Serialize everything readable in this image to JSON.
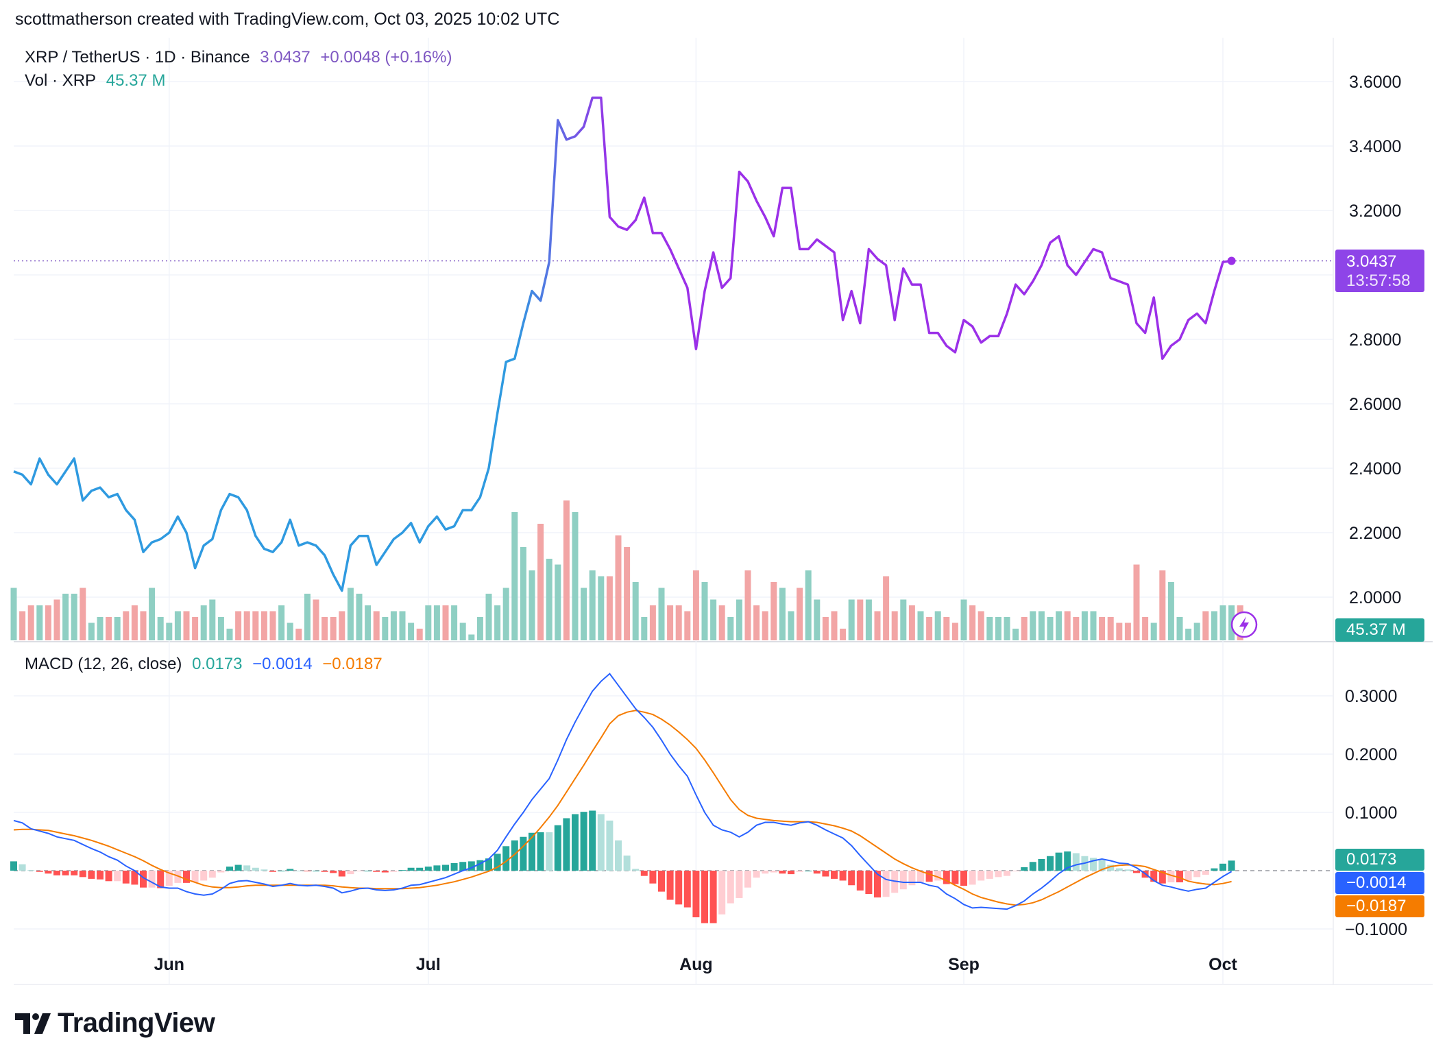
{
  "header": {
    "credit": "scottmatherson created with TradingView.com, Oct 03, 2025 10:02 UTC"
  },
  "legend": {
    "symbol": "XRP / TetherUS · 1D · Binance",
    "price": "3.0437",
    "change": "+0.0048 (+0.16%)",
    "vol_label": "Vol · XRP",
    "vol_value": "45.37 M",
    "macd_label": "MACD (12, 26, close)",
    "macd_hist": "0.0173",
    "macd_line": "−0.0014",
    "macd_signal": "−0.0187"
  },
  "badges": {
    "price": "3.0437",
    "countdown": "13:57:58",
    "volume": "45.37 M",
    "hist": "0.0173",
    "macd": "−0.0014",
    "signal": "−0.0187"
  },
  "colors": {
    "line_blue": "#2f9ae0",
    "line_purple": "#9b30e8",
    "vol_up": "#8fcfc3",
    "vol_down": "#f2a5a5",
    "macd_line": "#2962ff",
    "signal_line": "#f57c00",
    "hist_up_strong": "#26a69a",
    "hist_up_weak": "#b2dfdb",
    "hist_down_strong": "#ff5252",
    "hist_down_weak": "#ffcdd2",
    "accent": "#7e57c2"
  },
  "logo": {
    "text": "TradingView"
  },
  "chart_data": [
    {
      "type": "line",
      "title": "XRP / TetherUS · 1D · Binance",
      "x_labels": [
        "Jun",
        "Jul",
        "Aug",
        "Sep",
        "Oct"
      ],
      "x_label_dates": [
        "2025-06-01",
        "2025-07-01",
        "2025-08-01",
        "2025-09-01",
        "2025-10-01"
      ],
      "x_start": "2025-05-14",
      "ylim": [
        1.9,
        3.62
      ],
      "y_ticks": [
        2.0,
        2.2,
        2.4,
        2.6,
        2.8,
        3.0,
        3.2,
        3.4,
        3.6
      ],
      "last_price": 3.0437,
      "series": [
        {
          "name": "XRP / TetherUS",
          "values": [
            2.39,
            2.38,
            2.35,
            2.43,
            2.38,
            2.35,
            2.39,
            2.43,
            2.3,
            2.33,
            2.34,
            2.31,
            2.32,
            2.27,
            2.24,
            2.14,
            2.17,
            2.18,
            2.2,
            2.25,
            2.2,
            2.09,
            2.16,
            2.18,
            2.27,
            2.32,
            2.31,
            2.27,
            2.19,
            2.15,
            2.14,
            2.17,
            2.24,
            2.16,
            2.17,
            2.16,
            2.13,
            2.07,
            2.02,
            2.16,
            2.19,
            2.19,
            2.1,
            2.14,
            2.18,
            2.2,
            2.23,
            2.17,
            2.22,
            2.25,
            2.21,
            2.22,
            2.27,
            2.27,
            2.31,
            2.4,
            2.57,
            2.73,
            2.74,
            2.85,
            2.95,
            2.92,
            3.04,
            3.48,
            3.42,
            3.43,
            3.46,
            3.55,
            3.55,
            3.18,
            3.15,
            3.14,
            3.17,
            3.24,
            3.13,
            3.13,
            3.08,
            3.02,
            2.96,
            2.77,
            2.95,
            3.07,
            2.96,
            2.99,
            3.32,
            3.29,
            3.23,
            3.18,
            3.12,
            3.27,
            3.27,
            3.08,
            3.08,
            3.11,
            3.09,
            3.07,
            2.86,
            2.95,
            2.85,
            3.08,
            3.05,
            3.03,
            2.86,
            3.02,
            2.97,
            2.97,
            2.82,
            2.82,
            2.78,
            2.76,
            2.86,
            2.84,
            2.79,
            2.81,
            2.81,
            2.88,
            2.97,
            2.94,
            2.98,
            3.03,
            3.1,
            3.12,
            3.03,
            3.0,
            3.04,
            3.08,
            3.07,
            2.99,
            2.98,
            2.97,
            2.85,
            2.82,
            2.93,
            2.74,
            2.78,
            2.8,
            2.86,
            2.88,
            2.85,
            2.95,
            3.04,
            3.0437
          ]
        },
        {
          "name": "Vol · XRP",
          "values": [
            0.9,
            0.5,
            0.6,
            0.6,
            0.6,
            0.7,
            0.8,
            0.8,
            0.9,
            0.3,
            0.4,
            0.4,
            0.4,
            0.5,
            0.6,
            0.5,
            0.9,
            0.4,
            0.3,
            0.5,
            0.5,
            0.4,
            0.6,
            0.7,
            0.4,
            0.2,
            0.5,
            0.5,
            0.5,
            0.5,
            0.5,
            0.6,
            0.3,
            0.2,
            0.8,
            0.7,
            0.4,
            0.4,
            0.5,
            0.9,
            0.8,
            0.6,
            0.5,
            0.4,
            0.5,
            0.5,
            0.3,
            0.2,
            0.6,
            0.6,
            0.6,
            0.6,
            0.3,
            0.1,
            0.4,
            0.8,
            0.6,
            0.9,
            2.2,
            1.6,
            1.2,
            2.0,
            1.4,
            1.3,
            2.4,
            2.2,
            0.9,
            1.2,
            1.1,
            1.1,
            1.8,
            1.6,
            1.0,
            0.4,
            0.6,
            0.9,
            0.6,
            0.6,
            0.5,
            1.2,
            1.0,
            0.7,
            0.6,
            0.4,
            0.7,
            1.2,
            0.6,
            0.5,
            1.0,
            0.9,
            0.5,
            0.9,
            1.2,
            0.7,
            0.4,
            0.5,
            0.2,
            0.7,
            0.7,
            0.7,
            0.5,
            1.1,
            0.5,
            0.7,
            0.6,
            0.5,
            0.4,
            0.5,
            0.4,
            0.3,
            0.7,
            0.6,
            0.5,
            0.4,
            0.4,
            0.4,
            0.2,
            0.4,
            0.5,
            0.5,
            0.4,
            0.5,
            0.5,
            0.4,
            0.5,
            0.5,
            0.4,
            0.4,
            0.3,
            0.3,
            1.3,
            0.4,
            0.3,
            1.2,
            1.0,
            0.4,
            0.2,
            0.3,
            0.5,
            0.5,
            0.6,
            0.6,
            0.6
          ]
        }
      ]
    },
    {
      "type": "line",
      "title": "MACD (12, 26, close)",
      "ylim": [
        -0.13,
        0.36
      ],
      "y_ticks": [
        -0.1,
        0.1,
        0.2,
        0.3
      ],
      "series": [
        {
          "name": "MACD",
          "values": [
            0.086,
            0.082,
            0.072,
            0.068,
            0.064,
            0.058,
            0.055,
            0.052,
            0.045,
            0.038,
            0.032,
            0.024,
            0.018,
            0.008,
            0.0,
            -0.012,
            -0.02,
            -0.028,
            -0.03,
            -0.03,
            -0.036,
            -0.04,
            -0.042,
            -0.04,
            -0.032,
            -0.022,
            -0.018,
            -0.017,
            -0.02,
            -0.023,
            -0.027,
            -0.025,
            -0.022,
            -0.025,
            -0.026,
            -0.025,
            -0.027,
            -0.03,
            -0.038,
            -0.035,
            -0.031,
            -0.03,
            -0.033,
            -0.034,
            -0.033,
            -0.03,
            -0.025,
            -0.024,
            -0.02,
            -0.016,
            -0.012,
            -0.006,
            0.0,
            0.005,
            0.012,
            0.02,
            0.035,
            0.058,
            0.08,
            0.1,
            0.122,
            0.14,
            0.158,
            0.19,
            0.225,
            0.255,
            0.282,
            0.308,
            0.325,
            0.338,
            0.318,
            0.298,
            0.278,
            0.263,
            0.246,
            0.224,
            0.2,
            0.18,
            0.162,
            0.13,
            0.1,
            0.078,
            0.07,
            0.066,
            0.058,
            0.066,
            0.078,
            0.083,
            0.083,
            0.08,
            0.078,
            0.082,
            0.084,
            0.078,
            0.07,
            0.063,
            0.056,
            0.043,
            0.026,
            0.01,
            -0.006,
            -0.015,
            -0.018,
            -0.02,
            -0.02,
            -0.02,
            -0.025,
            -0.028,
            -0.04,
            -0.048,
            -0.058,
            -0.064,
            -0.063,
            -0.064,
            -0.065,
            -0.066,
            -0.06,
            -0.052,
            -0.04,
            -0.03,
            -0.018,
            -0.005,
            0.005,
            0.01,
            0.013,
            0.017,
            0.02,
            0.017,
            0.013,
            0.012,
            0.005,
            -0.005,
            -0.017,
            -0.025,
            -0.028,
            -0.032,
            -0.035,
            -0.032,
            -0.03,
            -0.02,
            -0.01,
            -0.0014
          ]
        },
        {
          "name": "Signal",
          "values": [
            0.07,
            0.071,
            0.071,
            0.07,
            0.069,
            0.066,
            0.063,
            0.06,
            0.056,
            0.052,
            0.047,
            0.042,
            0.036,
            0.03,
            0.024,
            0.017,
            0.009,
            0.002,
            -0.004,
            -0.009,
            -0.015,
            -0.02,
            -0.025,
            -0.028,
            -0.029,
            -0.029,
            -0.028,
            -0.026,
            -0.025,
            -0.025,
            -0.025,
            -0.025,
            -0.025,
            -0.025,
            -0.025,
            -0.025,
            -0.025,
            -0.026,
            -0.028,
            -0.029,
            -0.03,
            -0.03,
            -0.031,
            -0.031,
            -0.031,
            -0.031,
            -0.03,
            -0.029,
            -0.027,
            -0.025,
            -0.022,
            -0.019,
            -0.015,
            -0.011,
            -0.006,
            -0.001,
            0.006,
            0.016,
            0.028,
            0.042,
            0.057,
            0.074,
            0.092,
            0.112,
            0.135,
            0.158,
            0.181,
            0.205,
            0.228,
            0.252,
            0.266,
            0.272,
            0.275,
            0.272,
            0.268,
            0.26,
            0.25,
            0.238,
            0.225,
            0.21,
            0.19,
            0.168,
            0.145,
            0.122,
            0.105,
            0.095,
            0.09,
            0.088,
            0.086,
            0.085,
            0.084,
            0.084,
            0.084,
            0.083,
            0.08,
            0.077,
            0.073,
            0.068,
            0.06,
            0.05,
            0.04,
            0.03,
            0.02,
            0.012,
            0.005,
            -0.001,
            -0.006,
            -0.011,
            -0.017,
            -0.025,
            -0.032,
            -0.04,
            -0.046,
            -0.05,
            -0.054,
            -0.057,
            -0.059,
            -0.058,
            -0.055,
            -0.05,
            -0.043,
            -0.036,
            -0.028,
            -0.02,
            -0.012,
            -0.005,
            0.002,
            0.007,
            0.009,
            0.01,
            0.009,
            0.007,
            0.002,
            -0.003,
            -0.008,
            -0.012,
            -0.018,
            -0.021,
            -0.023,
            -0.024,
            -0.022,
            -0.0187
          ]
        }
      ]
    }
  ]
}
